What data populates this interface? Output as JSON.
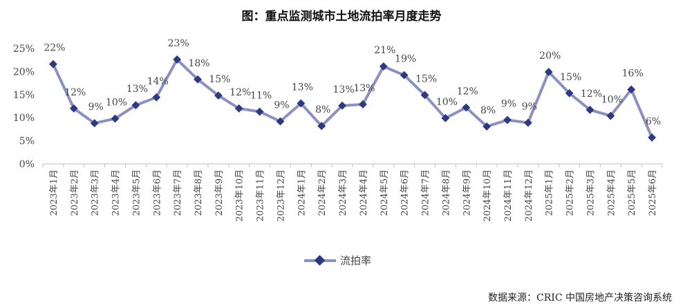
{
  "chart_data": {
    "type": "line",
    "title": "图：重点监测城市土地流拍率月度走势",
    "categories": [
      "2023年1月",
      "2023年2月",
      "2023年3月",
      "2023年4月",
      "2023年5月",
      "2023年6月",
      "2023年7月",
      "2023年8月",
      "2023年9月",
      "2023年10月",
      "2023年11月",
      "2023年12月",
      "2024年1月",
      "2024年2月",
      "2024年3月",
      "2024年4月",
      "2024年5月",
      "2024年6月",
      "2024年7月",
      "2024年8月",
      "2024年9月",
      "2024年10月",
      "2024年11月",
      "2024年12月",
      "2025年1月",
      "2025年2月",
      "2025年3月",
      "2025年4月",
      "2025年5月",
      "2025年6月"
    ],
    "series": [
      {
        "name": "流拍率",
        "values": [
          21.6,
          12.0,
          8.8,
          9.8,
          12.7,
          14.4,
          22.6,
          18.3,
          14.8,
          12.0,
          11.3,
          9.2,
          13.1,
          8.2,
          12.6,
          12.9,
          21.1,
          19.2,
          14.9,
          9.9,
          12.2,
          8.1,
          9.5,
          8.9,
          19.9,
          15.3,
          11.7,
          10.4,
          16.1,
          5.7
        ],
        "labels": [
          "22%",
          "12%",
          "9%",
          "10%",
          "13%",
          "14%",
          "23%",
          "18%",
          "15%",
          "12%",
          "11%",
          "9%",
          "13%",
          "8%",
          "13%",
          "13%",
          "21%",
          "19%",
          "15%",
          "10%",
          "12%",
          "8%",
          "9%",
          "9%",
          "20%",
          "15%",
          "12%",
          "10%",
          "16%",
          "6%"
        ],
        "color": "#8b90c3",
        "marker_color": "#2b3a82"
      }
    ],
    "ylim": [
      0,
      25
    ],
    "yticks": [
      "0%",
      "5%",
      "10%",
      "15%",
      "20%",
      "25%"
    ],
    "xlabel": "",
    "ylabel": "",
    "grid": false,
    "legend": "bottom-center"
  },
  "legend": {
    "label": "流拍率"
  },
  "source": "数据来源：CRIC 中国房地产决策咨询系统"
}
